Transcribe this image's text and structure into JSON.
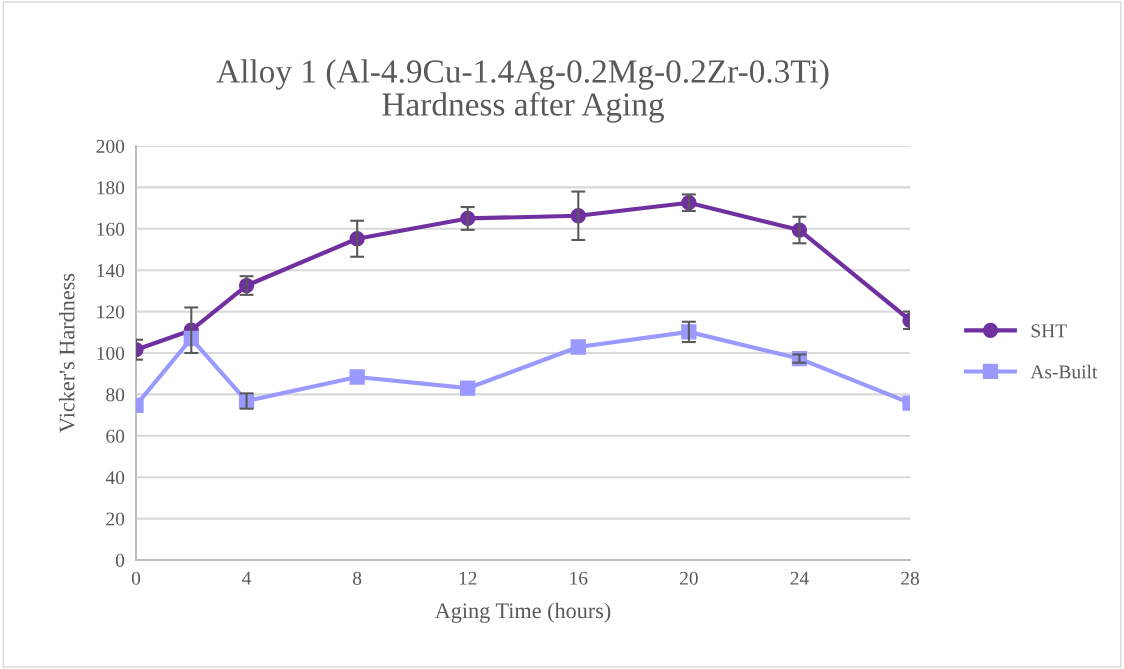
{
  "chart_data": {
    "type": "line",
    "title": "Alloy 1 (Al-4.9Cu-1.4Ag-0.2Mg-0.2Zr-0.3Ti)\nHardness after Aging",
    "xlabel": "Aging Time (hours)",
    "ylabel": "Vicker's Hardness",
    "x": [
      0,
      2,
      4,
      8,
      12,
      16,
      20,
      24,
      28
    ],
    "series": [
      {
        "name": "SHT",
        "color": "#7030a0",
        "marker": "circle",
        "values": [
          101.6,
          111,
          132.6,
          155.2,
          165,
          166.3,
          172.6,
          159.4,
          115.8
        ],
        "errors": [
          4.8,
          11,
          4.5,
          8.7,
          5.5,
          11.7,
          4,
          6.4,
          4.2
        ]
      },
      {
        "name": "As-Built",
        "color": "#9999ff",
        "marker": "square",
        "values": [
          74.7,
          107,
          76.8,
          88.4,
          83,
          102.9,
          110.2,
          97.3,
          75.8
        ],
        "errors": [
          null,
          null,
          3.7,
          null,
          null,
          null,
          4.9,
          2,
          null
        ]
      }
    ],
    "xlim": [
      0,
      28
    ],
    "xticks": [
      0,
      4,
      8,
      12,
      16,
      20,
      24,
      28
    ],
    "ylim": [
      0,
      200
    ],
    "yticks": [
      0,
      20,
      40,
      60,
      80,
      100,
      120,
      140,
      160,
      180,
      200
    ],
    "grid": "y",
    "legend": "right"
  }
}
